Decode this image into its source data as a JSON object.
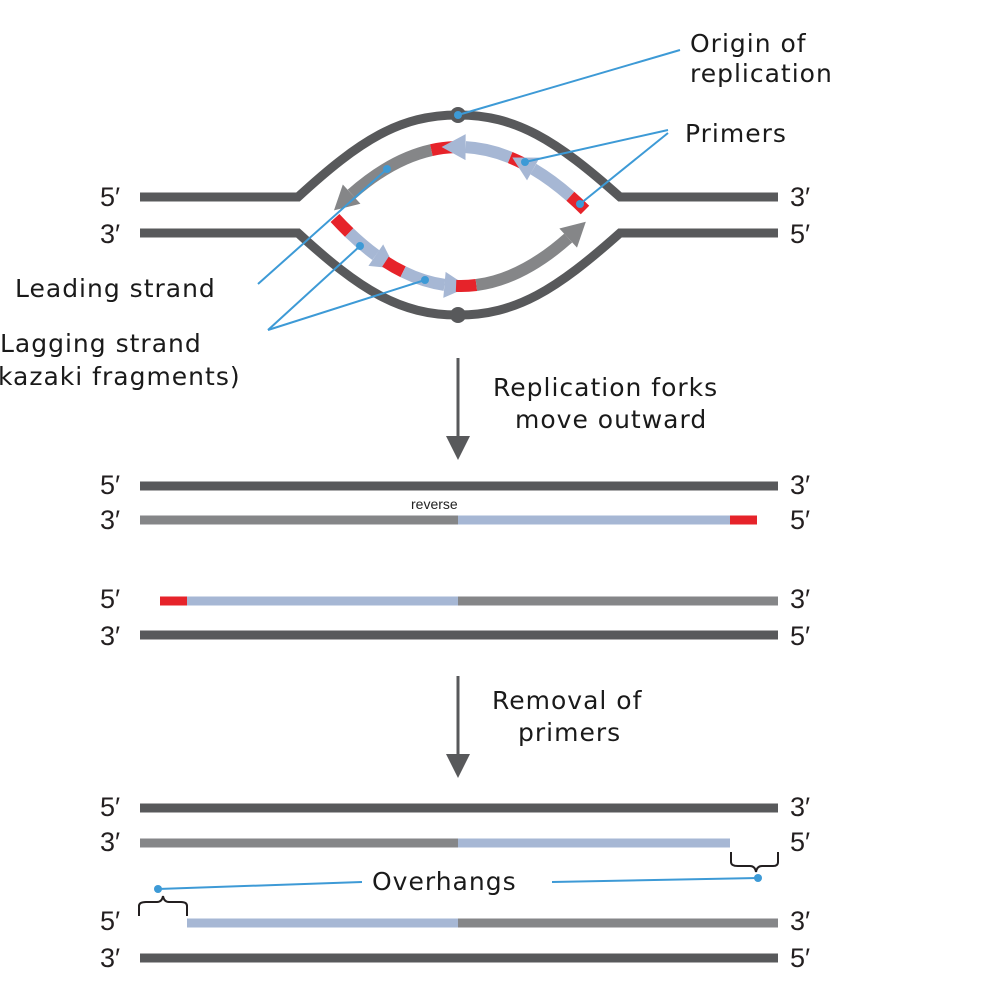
{
  "colors": {
    "parental": "#58595b",
    "new_strand": "#858688",
    "okazaki": "#a6b7d4",
    "primer": "#e6232a",
    "leader": "#3d9ad6"
  },
  "ends": {
    "five": "5′",
    "three": "3′"
  },
  "labels": {
    "origin_1": "Origin of",
    "origin_2": "replication",
    "primers": "Primers",
    "leading": "Leading strand",
    "lagging_1": "Lagging strand",
    "lagging_2": "kazaki fragments)",
    "step1_1": "Replication forks",
    "step1_2": "move outward",
    "reverse": "reverse",
    "step2_1": "Removal of",
    "step2_2": "primers",
    "overhangs": "Overhangs"
  }
}
